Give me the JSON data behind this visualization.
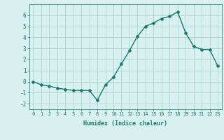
{
  "x": [
    0,
    1,
    2,
    3,
    4,
    5,
    6,
    7,
    8,
    9,
    10,
    11,
    12,
    13,
    14,
    15,
    16,
    17,
    18,
    19,
    20,
    21,
    22,
    23
  ],
  "y": [
    0.0,
    -0.3,
    -0.4,
    -0.6,
    -0.7,
    -0.8,
    -0.8,
    -0.8,
    -1.7,
    -0.3,
    0.4,
    1.6,
    2.8,
    4.1,
    5.0,
    5.3,
    5.7,
    5.9,
    6.3,
    4.4,
    3.2,
    2.9,
    2.9,
    1.4
  ],
  "xlabel": "Humidex (Indice chaleur)",
  "ylim": [
    -2.5,
    7.0
  ],
  "xlim": [
    -0.5,
    23.5
  ],
  "yticks": [
    -2,
    -1,
    0,
    1,
    2,
    3,
    4,
    5,
    6
  ],
  "xticks": [
    0,
    1,
    2,
    3,
    4,
    5,
    6,
    7,
    8,
    9,
    10,
    11,
    12,
    13,
    14,
    15,
    16,
    17,
    18,
    19,
    20,
    21,
    22,
    23
  ],
  "line_color": "#1a7a6e",
  "marker": "D",
  "marker_size": 2.0,
  "bg_color": "#d8f0f0",
  "grid_color": "#b0d8d8",
  "font_family": "monospace"
}
